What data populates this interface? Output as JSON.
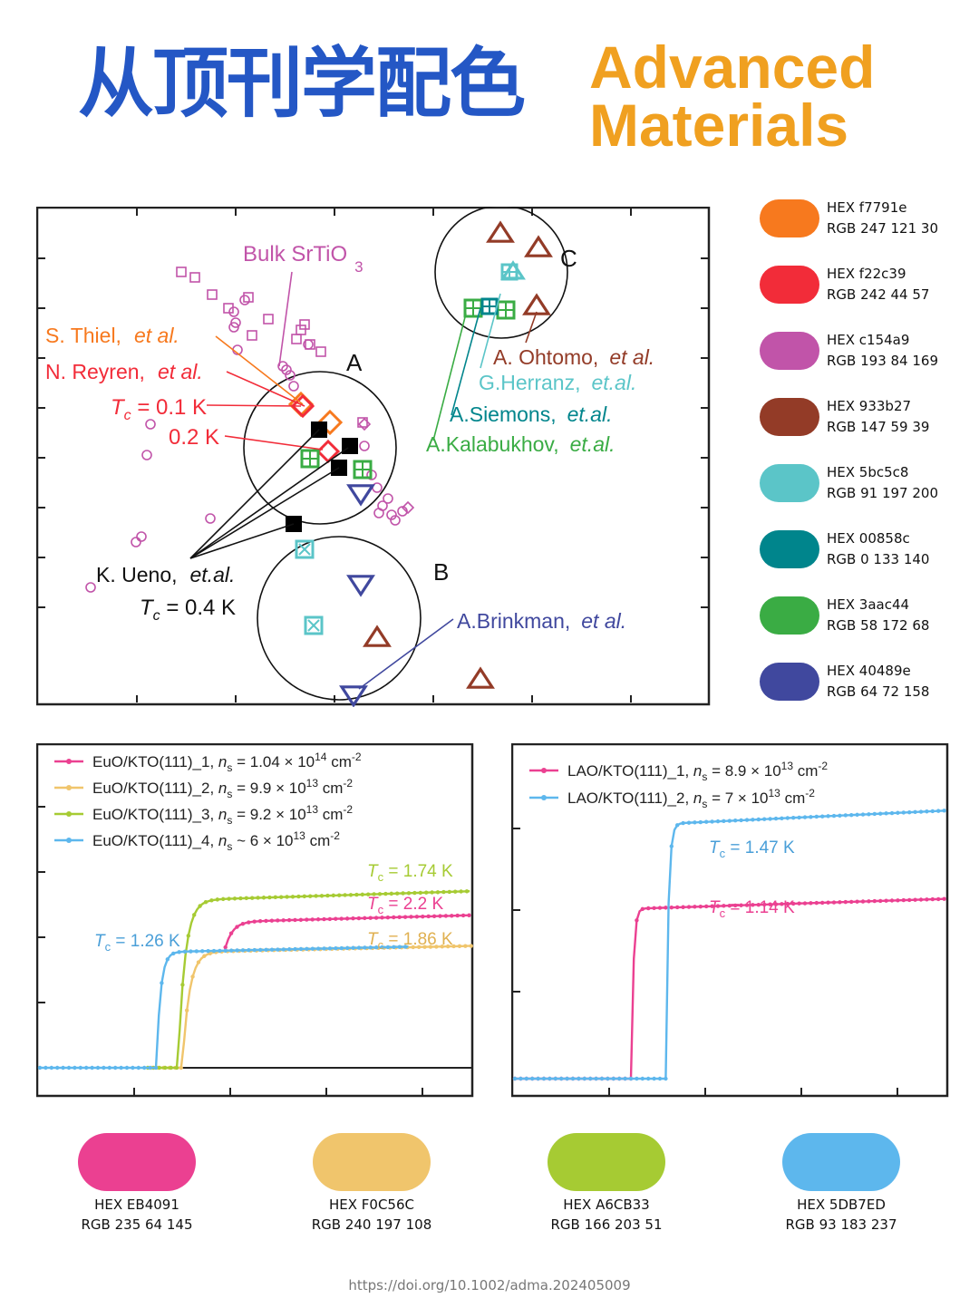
{
  "header": {
    "title_cn": "从顶刊学配色",
    "title_en_line1": "Advanced",
    "title_en_line2": "Materials"
  },
  "palette_right": [
    {
      "hex_label": "HEX f7791e",
      "rgb_label": "RGB 247 121 30",
      "color": "#f7791e"
    },
    {
      "hex_label": "HEX f22c39",
      "rgb_label": "RGB 242 44 57",
      "color": "#f22c39"
    },
    {
      "hex_label": "HEX c154a9",
      "rgb_label": "RGB 193 84 169",
      "color": "#c154a9"
    },
    {
      "hex_label": "HEX 933b27",
      "rgb_label": "RGB 147 59 39",
      "color": "#933b27"
    },
    {
      "hex_label": "HEX 5bc5c8",
      "rgb_label": "RGB 91 197 200",
      "color": "#5bc5c8"
    },
    {
      "hex_label": "HEX 00858c",
      "rgb_label": "RGB 0 133 140",
      "color": "#00858c"
    },
    {
      "hex_label": "HEX 3aac44",
      "rgb_label": "RGB 58 172 68",
      "color": "#3aac44"
    },
    {
      "hex_label": "HEX 40489e",
      "rgb_label": "RGB 64 72 158",
      "color": "#40489e"
    }
  ],
  "palette_bottom": [
    {
      "hex_label": "HEX EB4091",
      "rgb_label": "RGB 235 64 145",
      "color": "#eb4091"
    },
    {
      "hex_label": "HEX F0C56C",
      "rgb_label": "RGB 240 197 108",
      "color": "#f0c56c"
    },
    {
      "hex_label": "HEX A6CB33",
      "rgb_label": "RGB 166 203 51",
      "color": "#a6cb33"
    },
    {
      "hex_label": "HEX 5DB7ED",
      "rgb_label": "RGB 93 183 237",
      "color": "#5db7ed"
    }
  ],
  "chart_data": [
    {
      "type": "scatter",
      "title": "",
      "xlabel": "",
      "ylabel": "",
      "annotations": {
        "bulk": "Bulk SrTiO",
        "bulk_sub": "3",
        "thiel_name": "S. Thiel,",
        "thiel_etal": "et al.",
        "reyren_name": "N. Reyren,",
        "reyren_etal": "et al.",
        "tc_t": "T",
        "tc_c": "c",
        "tc01": " = 0.1 K",
        "tc02": "0.2 K",
        "ueno_name": "K. Ueno,",
        "ueno_etal": "et.al.",
        "tc04": " = 0.4 K",
        "ohtomo_name": "A. Ohtomo,",
        "ohtomo_etal": "et al.",
        "herranz_name": "G.Herranz,",
        "herranz_etal": "et.al.",
        "siemons_name": "A.Siemons,",
        "siemons_etal": "et.al.",
        "kalabukhov_name": "A.Kalabukhov,",
        "kalabukhov_etal": "et.al.",
        "brinkman_name": "A.Brinkman,",
        "brinkman_etal": "et al.",
        "circle_a": "A",
        "circle_b": "B",
        "circle_c": "C"
      }
    },
    {
      "type": "line",
      "title": "",
      "xlabel": "",
      "ylabel": "",
      "legend": [
        {
          "name": "EuO/KTO(111)_1, ",
          "ns": "n",
          "ns_sub": "s",
          "value": " = 1.04 × 10",
          "exp": "14",
          "unit": " cm",
          "unit_exp": "-2",
          "color": "#eb4091"
        },
        {
          "name": "EuO/KTO(111)_2, ",
          "ns": "n",
          "ns_sub": "s",
          "value": " = 9.9 × 10",
          "exp": "13",
          "unit": " cm",
          "unit_exp": "-2",
          "color": "#f0c56c"
        },
        {
          "name": "EuO/KTO(111)_3, ",
          "ns": "n",
          "ns_sub": "s",
          "value": " = 9.2 × 10",
          "exp": "13",
          "unit": " cm",
          "unit_exp": "-2",
          "color": "#a6cb33"
        },
        {
          "name": "EuO/KTO(111)_4, ",
          "ns": "n",
          "ns_sub": "s",
          "value": " ~ 6 × 10",
          "exp": "13",
          "unit": " cm",
          "unit_exp": "-2",
          "color": "#5db7ed"
        }
      ],
      "tc_labels": [
        {
          "t": "T",
          "sub": "c",
          "text": " = 1.74 K",
          "color": "#a6cb33"
        },
        {
          "t": "T",
          "sub": "c",
          "text": " = 2.2 K",
          "color": "#eb4091"
        },
        {
          "t": "T",
          "sub": "c",
          "text": " = 1.86 K",
          "color": "#f0c56c"
        },
        {
          "t": "T",
          "sub": "c",
          "text": " = 1.26 K",
          "color": "#5db7ed"
        }
      ],
      "series": [
        {
          "name": "EuO/KTO(111)_1",
          "color": "#eb4091",
          "tc": 2.2,
          "onset": 0.4,
          "plateau": 0.73,
          "width": 0.055,
          "start": 0.43
        },
        {
          "name": "EuO/KTO(111)_2",
          "color": "#f0c56c",
          "tc": 1.86,
          "onset": 0.33,
          "plateau": 0.58,
          "width": 0.05,
          "start": 0.26
        },
        {
          "name": "EuO/KTO(111)_3",
          "color": "#a6cb33",
          "tc": 1.74,
          "onset": 0.32,
          "plateau": 0.84,
          "width": 0.05,
          "start": 0.25
        },
        {
          "name": "EuO/KTO(111)_4",
          "color": "#5db7ed",
          "tc": 1.26,
          "onset": 0.27,
          "plateau": 0.58,
          "width": 0.03,
          "start": 0.0
        }
      ]
    },
    {
      "type": "line",
      "title": "",
      "xlabel": "",
      "ylabel": "",
      "legend": [
        {
          "name": "LAO/KTO(111)_1, ",
          "ns": "n",
          "ns_sub": "s",
          "value": " = 8.9 × 10",
          "exp": "13",
          "unit": " cm",
          "unit_exp": "-2",
          "color": "#eb4091"
        },
        {
          "name": "LAO/KTO(111)_2, ",
          "ns": "n",
          "ns_sub": "s",
          "value": " = 7 × 10",
          "exp": "13",
          "unit": " cm",
          "unit_exp": "-2",
          "color": "#5db7ed"
        }
      ],
      "tc_labels": [
        {
          "t": "T",
          "sub": "c",
          "text": " = 1.47 K",
          "color": "#5db7ed"
        },
        {
          "t": "T",
          "sub": "c",
          "text": " = 1.14 K",
          "color": "#eb4091"
        }
      ],
      "series": [
        {
          "name": "LAO/KTO(111)_1",
          "color": "#eb4091",
          "tc": 1.14,
          "onset": 0.27,
          "plateau": 0.66,
          "width": 0.012,
          "start": 0.0
        },
        {
          "name": "LAO/KTO(111)_2",
          "color": "#5db7ed",
          "tc": 1.47,
          "onset": 0.35,
          "plateau": 0.99,
          "width": 0.014,
          "start": 0.0
        }
      ]
    }
  ],
  "footer": {
    "doi": "https://doi.org/10.1002/adma.202405009"
  }
}
